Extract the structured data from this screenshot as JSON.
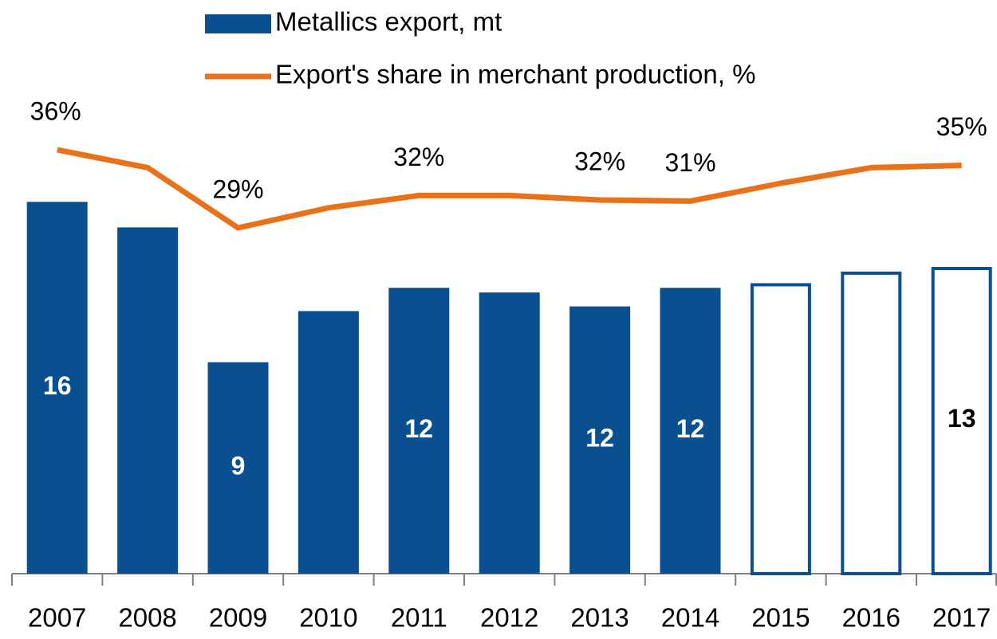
{
  "chart_data": {
    "type": "bar",
    "categories": [
      "2007",
      "2008",
      "2009",
      "2010",
      "2011",
      "2012",
      "2013",
      "2014",
      "2015",
      "2016",
      "2017"
    ],
    "ylim": [
      0,
      19.2
    ],
    "y2lim": [
      -2,
      38
    ],
    "series": [
      {
        "name": "Metallics export, mt",
        "type": "bar",
        "color": "#0a4f8f",
        "values": [
          16,
          14.9,
          9.1,
          11.3,
          12.3,
          12.1,
          11.5,
          12.3,
          12.5,
          13.0,
          13.2
        ],
        "value_labels": [
          "16",
          null,
          "9",
          null,
          "12",
          null,
          "12",
          "12",
          null,
          null,
          "13"
        ],
        "bar_style": [
          "solid",
          "solid",
          "solid",
          "solid",
          "solid",
          "solid",
          "solid",
          "solid",
          "outline",
          "outline",
          "outline"
        ]
      },
      {
        "name": "Export's share in merchant production, %",
        "type": "line",
        "axis": "y2",
        "color": "#e8711a",
        "values": [
          36,
          34.4,
          29,
          30.8,
          31.9,
          31.9,
          31.5,
          31.4,
          33.0,
          34.4,
          34.6
        ],
        "value_labels": [
          "36%",
          null,
          "29%",
          null,
          "32%",
          null,
          "32%",
          "31%",
          null,
          null,
          "35%"
        ]
      }
    ]
  }
}
